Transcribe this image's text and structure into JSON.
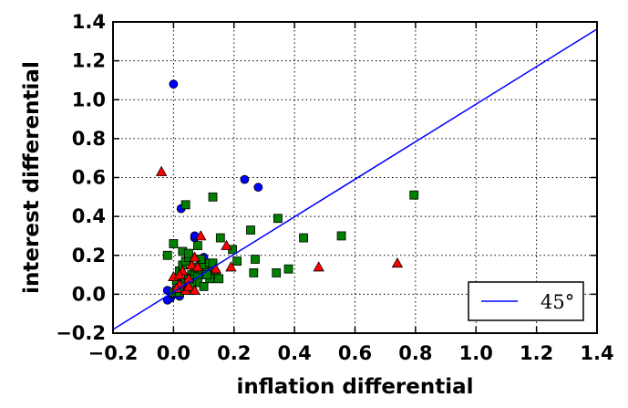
{
  "chart_data": {
    "type": "scatter",
    "title": "",
    "xlabel": "inflation differential",
    "ylabel": "interest differential",
    "xlim": [
      -0.2,
      1.4
    ],
    "ylim": [
      -0.2,
      1.4
    ],
    "xticks": [
      "−0.2",
      "0.0",
      "0.2",
      "0.4",
      "0.6",
      "0.8",
      "1.0",
      "1.2",
      "1.4"
    ],
    "yticks": [
      "−0.2",
      "0.0",
      "0.2",
      "0.4",
      "0.6",
      "0.8",
      "1.0",
      "1.2",
      "1.4"
    ],
    "grid": true,
    "legend_position": "bottom-right",
    "line": {
      "label": "45°",
      "slope": 0.965,
      "intercept": 0.012,
      "color": "#0000ff"
    },
    "series": [
      {
        "marker": "circle",
        "color": "#0000ff",
        "x": [
          0.0,
          -0.02,
          -0.01,
          -0.02,
          0.0,
          0.01,
          0.02,
          0.03,
          0.04,
          0.06,
          0.07,
          0.08,
          0.09,
          0.1,
          0.07,
          0.1,
          0.025,
          0.07,
          0.235,
          0.28
        ],
        "y": [
          1.08,
          0.02,
          -0.02,
          -0.03,
          0.0,
          0.01,
          -0.01,
          0.02,
          0.05,
          0.06,
          0.1,
          0.12,
          0.15,
          0.19,
          0.29,
          0.14,
          0.44,
          0.3,
          0.59,
          0.55
        ]
      },
      {
        "marker": "square",
        "color": "#008000",
        "x": [
          0.0,
          0.01,
          0.02,
          0.03,
          0.04,
          0.05,
          0.06,
          0.07,
          0.08,
          0.09,
          0.1,
          0.11,
          0.12,
          0.13,
          0.14,
          0.15,
          -0.02,
          0.01,
          0.02,
          0.03,
          0.04,
          0.05,
          0.06,
          0.08,
          0.1,
          0.12,
          0.0,
          0.03,
          0.05,
          0.07,
          0.09,
          0.11,
          0.13,
          0.02,
          0.06,
          0.08,
          0.04,
          0.05,
          0.13,
          0.155,
          0.195,
          0.21,
          0.255,
          0.265,
          0.27,
          0.345,
          0.34,
          0.38,
          0.43,
          0.555,
          0.795
        ],
        "y": [
          0.01,
          0.02,
          0.03,
          0.05,
          0.06,
          0.08,
          0.1,
          0.12,
          0.09,
          0.13,
          0.15,
          0.11,
          0.16,
          0.14,
          0.1,
          0.08,
          0.2,
          0.07,
          0.12,
          0.15,
          0.17,
          0.04,
          0.02,
          0.06,
          0.04,
          0.08,
          0.26,
          0.22,
          0.19,
          0.14,
          0.18,
          0.1,
          0.16,
          0.01,
          0.05,
          0.25,
          0.46,
          0.21,
          0.5,
          0.29,
          0.23,
          0.17,
          0.33,
          0.11,
          0.18,
          0.39,
          0.11,
          0.13,
          0.29,
          0.3,
          0.51
        ]
      },
      {
        "marker": "triangle",
        "color": "#ff0000",
        "x": [
          -0.04,
          0.0,
          0.02,
          0.03,
          0.04,
          0.05,
          0.06,
          0.07,
          0.08,
          0.09,
          0.01,
          0.02,
          0.05,
          0.07,
          0.14,
          0.175,
          0.19,
          0.48,
          0.74
        ],
        "y": [
          0.63,
          0.09,
          0.05,
          0.12,
          0.02,
          0.08,
          0.15,
          0.19,
          0.14,
          0.3,
          0.03,
          0.1,
          0.04,
          0.02,
          0.13,
          0.25,
          0.14,
          0.14,
          0.16
        ]
      }
    ]
  }
}
